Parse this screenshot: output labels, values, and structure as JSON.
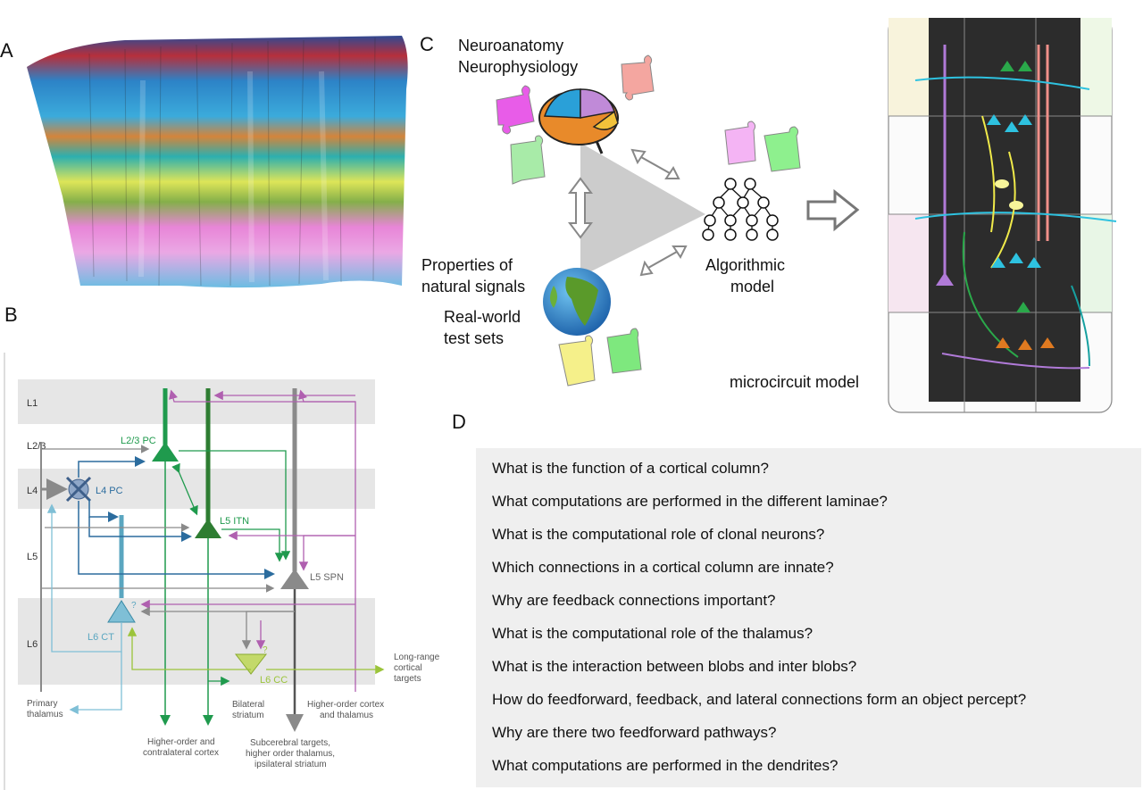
{
  "panels": {
    "a": "A",
    "b": "B",
    "c": "C",
    "d": "D"
  },
  "panel_b": {
    "layers": [
      "L1",
      "L2/3",
      "L4",
      "L5",
      "L6"
    ],
    "cells": {
      "l23_pc": "L2/3 PC",
      "l4_pc": "L4 PC",
      "l5_itn": "L5 ITN",
      "l5_spn": "L5 SPN",
      "l6_ct": "L6 CT",
      "l6_cc": "L6 CC"
    },
    "question_marks": [
      "?",
      "?"
    ],
    "targets": {
      "long_range_1": "Long-range",
      "long_range_2": "cortical",
      "long_range_3": "targets",
      "primary_thalamus_1": "Primary",
      "primary_thalamus_2": "thalamus",
      "bilateral_striatum_1": "Bilateral",
      "bilateral_striatum_2": "striatum",
      "higher_order_cortex_thalamus_1": "Higher-order cortex",
      "higher_order_cortex_thalamus_2": "and thalamus",
      "higher_order_contralateral_1": "Higher-order and",
      "higher_order_contralateral_2": "contralateral cortex",
      "subcerebral_1": "Subcerebral targets,",
      "subcerebral_2": "higher order thalamus,",
      "subcerebral_3": "ipsilateral striatum"
    },
    "colors": {
      "layer_band": "#e6e6e6",
      "green": "#1f9a4d",
      "dark_green": "#2e7d32",
      "blue": "#2b6c9e",
      "light_blue": "#7fbfd6",
      "purple": "#b060b0",
      "grey": "#8a8a8a",
      "lime": "#9bc43b"
    }
  },
  "panel_c": {
    "neuroanatomy": "Neuroanatomy",
    "neurophysiology": "Neurophysiology",
    "properties_1": "Properties of",
    "properties_2": "natural signals",
    "realworld_1": "Real-world",
    "realworld_2": "test sets",
    "algorithmic_1": "Algorithmic",
    "algorithmic_2": "model",
    "microcircuit": "microcircuit model",
    "puzzle_colors": [
      "#e85ce8",
      "#f4a6a0",
      "#a8eba8",
      "#f4b4f4",
      "#8ef08e",
      "#f5f08a",
      "#7ee87e"
    ]
  },
  "panel_d": {
    "questions": [
      "What is the function of a cortical column?",
      "What computations are performed in the different laminae?",
      "What is the computational role of clonal neurons?",
      "Which connections in a cortical column are innate?",
      "Why are feedback connections important?",
      "What is the computational role of the thalamus?",
      "What is the interaction between blobs and inter blobs?",
      "How do feedforward, feedback, and lateral connections form an object percept?",
      "Why are there two feedforward pathways?",
      "What computations are performed in the dendrites?"
    ]
  }
}
